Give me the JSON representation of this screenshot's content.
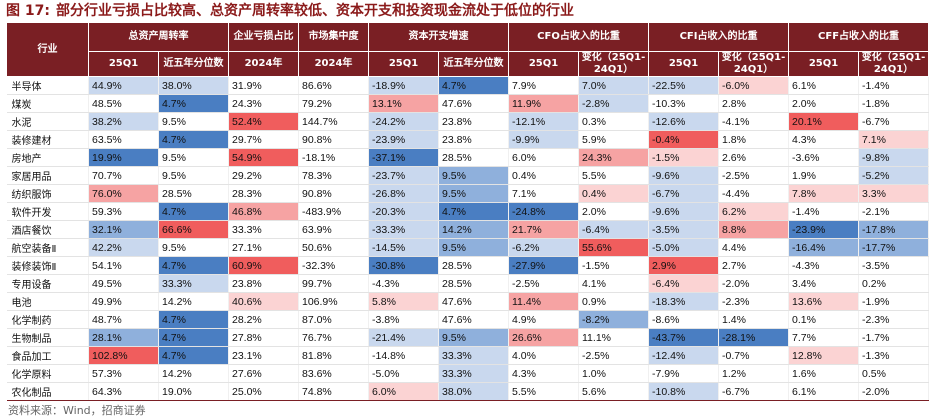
{
  "title": {
    "figure": "图 17:",
    "text": "部分行业亏损占比较高、总资产周转率较低、资本开支和投资现金流处于低位的行业"
  },
  "header": {
    "industry": "行业",
    "groups": [
      "总资产周转率",
      "企业亏损占比",
      "市场集中度",
      "资本开支增速",
      "CFO占收入的比重",
      "CFI占收入的比重",
      "CFF占收入的比重"
    ],
    "sub": [
      "25Q1",
      "近五年分位数",
      "2024年",
      "2024年",
      "25Q1",
      "近五年分位数",
      "25Q1",
      "变化（25Q1-24Q1）",
      "25Q1",
      "变化（25Q1-24Q1）",
      "25Q1",
      "变化（25Q1-24Q1）"
    ]
  },
  "colors": {
    "header_bg": "#7a1f24",
    "title": "#8b1a1a",
    "blue_strong": "#4a7ec2",
    "red_strong": "#f05d5d"
  },
  "rows": [
    {
      "name": "半导体",
      "cells": [
        "44.9%",
        "38.0%",
        "31.9%",
        "86.6%",
        "-18.9%",
        "4.7%",
        "7.9%",
        "7.0%",
        "-22.5%",
        "-6.0%",
        "6.1%",
        "-1.4%"
      ]
    },
    {
      "name": "煤炭",
      "cells": [
        "48.5%",
        "4.7%",
        "24.3%",
        "79.2%",
        "13.1%",
        "47.6%",
        "11.9%",
        "-2.8%",
        "-10.3%",
        "2.8%",
        "2.0%",
        "-1.8%"
      ]
    },
    {
      "name": "水泥",
      "cells": [
        "38.2%",
        "9.5%",
        "52.4%",
        "144.7%",
        "-24.2%",
        "23.8%",
        "-12.1%",
        "0.3%",
        "-12.6%",
        "-4.1%",
        "20.1%",
        "-6.7%"
      ]
    },
    {
      "name": "装修建材",
      "cells": [
        "63.5%",
        "4.7%",
        "29.7%",
        "90.8%",
        "-23.9%",
        "23.8%",
        "-9.9%",
        "5.9%",
        "-0.4%",
        "1.8%",
        "4.3%",
        "7.1%"
      ]
    },
    {
      "name": "房地产",
      "cells": [
        "19.9%",
        "9.5%",
        "54.9%",
        "-18.1%",
        "-37.1%",
        "28.5%",
        "6.0%",
        "24.3%",
        "-1.5%",
        "2.6%",
        "-3.6%",
        "-9.8%"
      ]
    },
    {
      "name": "家居用品",
      "cells": [
        "70.7%",
        "9.5%",
        "29.2%",
        "78.3%",
        "-23.7%",
        "9.5%",
        "0.4%",
        "5.5%",
        "-9.6%",
        "-2.5%",
        "1.9%",
        "-5.2%"
      ]
    },
    {
      "name": "纺织服饰",
      "cells": [
        "76.0%",
        "28.5%",
        "28.3%",
        "90.8%",
        "-26.8%",
        "9.5%",
        "7.1%",
        "0.4%",
        "-6.7%",
        "-4.4%",
        "7.8%",
        "3.3%"
      ]
    },
    {
      "name": "软件开发",
      "cells": [
        "59.3%",
        "4.7%",
        "46.8%",
        "-483.9%",
        "-20.3%",
        "4.7%",
        "-24.8%",
        "2.0%",
        "-9.6%",
        "6.2%",
        "-1.4%",
        "-2.1%"
      ]
    },
    {
      "name": "酒店餐饮",
      "cells": [
        "32.1%",
        "66.6%",
        "33.3%",
        "63.9%",
        "-33.3%",
        "14.2%",
        "21.7%",
        "-6.4%",
        "-3.5%",
        "8.8%",
        "-23.9%",
        "-17.8%"
      ]
    },
    {
      "name": "航空装备Ⅱ",
      "cells": [
        "42.2%",
        "9.5%",
        "27.1%",
        "50.6%",
        "-14.5%",
        "9.5%",
        "-6.2%",
        "55.6%",
        "-5.0%",
        "4.4%",
        "-16.4%",
        "-17.7%"
      ]
    },
    {
      "name": "装修装饰Ⅱ",
      "cells": [
        "54.1%",
        "4.7%",
        "60.9%",
        "-32.3%",
        "-30.8%",
        "28.5%",
        "-27.9%",
        "-1.5%",
        "2.9%",
        "2.7%",
        "-4.3%",
        "-3.5%"
      ]
    },
    {
      "name": "专用设备",
      "cells": [
        "49.5%",
        "33.3%",
        "23.8%",
        "99.7%",
        "-4.3%",
        "28.5%",
        "-2.5%",
        "4.1%",
        "-6.4%",
        "-2.0%",
        "3.4%",
        "0.2%"
      ]
    },
    {
      "name": "电池",
      "cells": [
        "49.9%",
        "14.2%",
        "40.6%",
        "106.9%",
        "5.8%",
        "47.6%",
        "11.4%",
        "0.9%",
        "-18.3%",
        "-2.3%",
        "13.6%",
        "-1.9%"
      ]
    },
    {
      "name": "化学制药",
      "cells": [
        "48.7%",
        "4.7%",
        "28.2%",
        "87.0%",
        "-3.8%",
        "47.6%",
        "4.9%",
        "-8.2%",
        "-8.6%",
        "1.4%",
        "0.1%",
        "-2.3%"
      ]
    },
    {
      "name": "生物制品",
      "cells": [
        "28.1%",
        "4.7%",
        "27.8%",
        "76.7%",
        "-21.4%",
        "9.5%",
        "26.6%",
        "11.1%",
        "-43.7%",
        "-28.1%",
        "7.7%",
        "-1.7%"
      ]
    },
    {
      "name": "食品加工",
      "cells": [
        "102.8%",
        "4.7%",
        "23.1%",
        "81.8%",
        "-14.8%",
        "33.3%",
        "4.0%",
        "-2.5%",
        "-12.4%",
        "-0.7%",
        "12.8%",
        "-1.3%"
      ]
    },
    {
      "name": "化学原料",
      "cells": [
        "57.3%",
        "14.2%",
        "27.6%",
        "83.6%",
        "-5.0%",
        "33.3%",
        "4.3%",
        "1.0%",
        "-7.9%",
        "1.2%",
        "1.6%",
        "0.5%"
      ]
    },
    {
      "name": "农化制品",
      "cells": [
        "64.3%",
        "19.0%",
        "25.0%",
        "74.8%",
        "6.0%",
        "38.0%",
        "5.5%",
        "5.6%",
        "-10.8%",
        "-6.7%",
        "6.1%",
        "-2.0%"
      ]
    }
  ],
  "shading": [
    [
      "lb",
      "lb",
      "",
      "",
      "lb",
      "sb",
      "",
      "lb",
      "lb",
      "lr",
      "",
      ""
    ],
    [
      "",
      "sb",
      "",
      "",
      "r",
      "",
      "r",
      "lb",
      "",
      "",
      "",
      ""
    ],
    [
      "lb",
      "",
      "sr",
      "",
      "lb",
      "",
      "lb",
      "",
      "lb",
      "",
      "sr",
      ""
    ],
    [
      "",
      "sb",
      "",
      "",
      "lb",
      "",
      "lb",
      "",
      "sr",
      "",
      "",
      "lr"
    ],
    [
      "sb",
      "",
      "sr",
      "",
      "sb",
      "",
      "",
      "r",
      "lr",
      "",
      "",
      "lb"
    ],
    [
      "",
      "",
      "",
      "",
      "lb",
      "mb",
      "",
      "",
      "lb",
      "",
      "",
      "lb"
    ],
    [
      "r",
      "",
      "",
      "",
      "lb",
      "mb",
      "",
      "lr",
      "lb",
      "",
      "lr",
      "lr"
    ],
    [
      "",
      "sb",
      "r",
      "",
      "lb",
      "sb",
      "sb",
      "",
      "lb",
      "lr",
      "",
      ""
    ],
    [
      "mb",
      "sr",
      "",
      "",
      "lb",
      "mb",
      "r",
      "lb",
      "lb",
      "r",
      "sb",
      "mb"
    ],
    [
      "lb",
      "",
      "",
      "",
      "lb",
      "mb",
      "lb",
      "sr",
      "lb",
      "",
      "mb",
      "mb"
    ],
    [
      "",
      "sb",
      "sr",
      "",
      "sb",
      "",
      "sb",
      "",
      "sr",
      "",
      "",
      ""
    ],
    [
      "",
      "lb",
      "",
      "",
      "",
      "",
      "",
      "",
      "lr",
      "",
      "",
      ""
    ],
    [
      "",
      "",
      "lr",
      "",
      "lr",
      "",
      "r",
      "",
      "lb",
      "",
      "lr",
      ""
    ],
    [
      "",
      "sb",
      "",
      "",
      "",
      "",
      "",
      "mb",
      "",
      "",
      "",
      ""
    ],
    [
      "mb",
      "sb",
      "",
      "",
      "lb",
      "mb",
      "r",
      "",
      "sb",
      "sb",
      "",
      ""
    ],
    [
      "sr",
      "sb",
      "",
      "",
      "",
      "lb",
      "",
      "",
      "lb",
      "",
      "lr",
      ""
    ],
    [
      "",
      "",
      "",
      "",
      "",
      "lb",
      "",
      "",
      "",
      "",
      "",
      ""
    ],
    [
      "",
      "",
      "",
      "",
      "lr",
      "lb",
      "",
      "",
      "lb",
      "",
      "",
      ""
    ]
  ],
  "source": "资料来源：Wind，招商证券"
}
